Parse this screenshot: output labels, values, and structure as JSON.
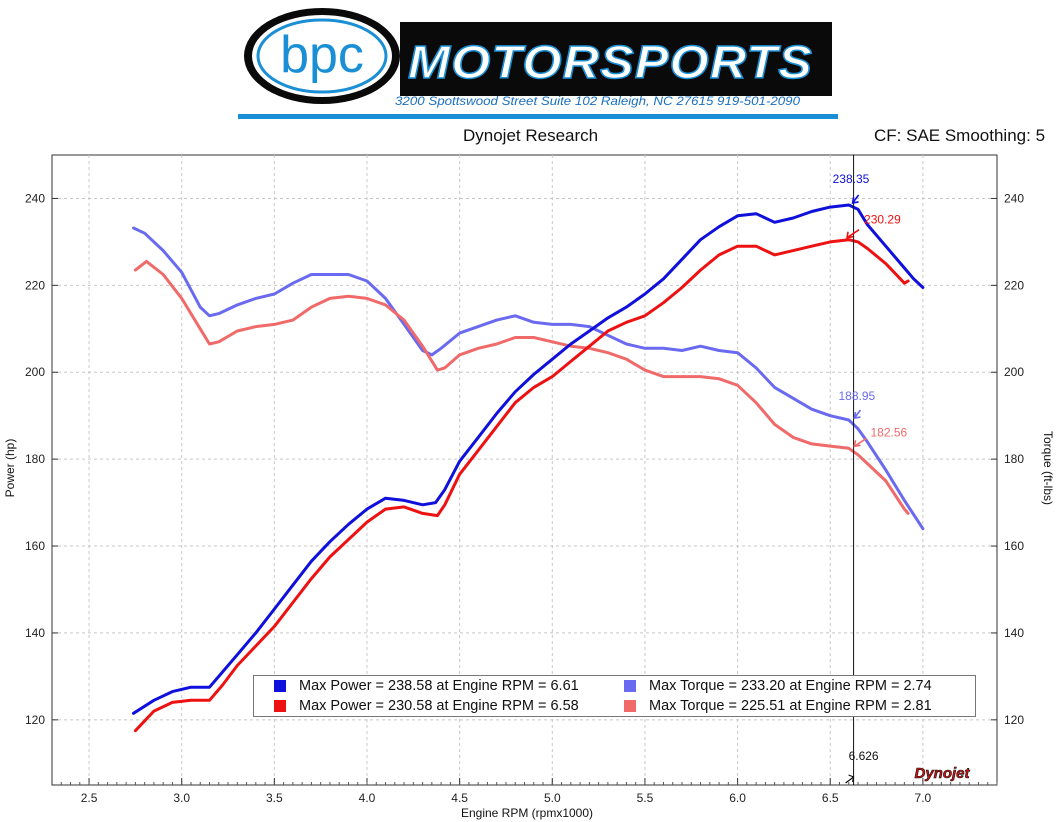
{
  "header": {
    "logo_text": "bpc",
    "brand": "MOTORSPORTS",
    "address": "3200 Spottswood Street Suite 102 Raleigh, NC 27615  919-501-2090"
  },
  "titles": {
    "center": "Dynojet Research",
    "right": "CF: SAE Smoothing: 5"
  },
  "cursor_label": "6.626",
  "watermark": "Dynojet",
  "colors": {
    "power_blue": "#1010dd",
    "power_red": "#ee1111",
    "torque_blue": "#6a6af0",
    "torque_red": "#f06a6a"
  },
  "chart_data": {
    "type": "line",
    "xlabel": "Engine RPM (rpmx1000)",
    "ylabel_left": "Power (hp)",
    "ylabel_right": "Torque (ft-lbs)",
    "xlim": [
      2.3,
      7.4
    ],
    "ylim": [
      105,
      250
    ],
    "x_ticks": [
      "2.5",
      "3.0",
      "3.5",
      "4.0",
      "4.5",
      "5.0",
      "5.5",
      "6.0",
      "6.5",
      "7.0"
    ],
    "y_ticks": [
      "120",
      "140",
      "160",
      "180",
      "200",
      "220",
      "240"
    ],
    "grid": true,
    "cursor_x": 6.626,
    "series": [
      {
        "name": "Max Power = 238.58 at Engine RPM = 6.61",
        "color": "#1010dd",
        "x": [
          2.74,
          2.85,
          2.95,
          3.05,
          3.15,
          3.22,
          3.3,
          3.4,
          3.5,
          3.6,
          3.7,
          3.8,
          3.9,
          4.0,
          4.1,
          4.2,
          4.3,
          4.37,
          4.42,
          4.5,
          4.6,
          4.7,
          4.8,
          4.9,
          5.0,
          5.1,
          5.2,
          5.3,
          5.4,
          5.5,
          5.6,
          5.7,
          5.8,
          5.9,
          6.0,
          6.1,
          6.2,
          6.3,
          6.4,
          6.5,
          6.6,
          6.65,
          6.7,
          6.8,
          6.9,
          6.95,
          7.0
        ],
        "y": [
          121.5,
          124.5,
          126.5,
          127.5,
          127.5,
          131,
          135,
          140,
          145.5,
          151,
          156.5,
          161,
          165,
          168.5,
          171,
          170.5,
          169.5,
          170,
          173,
          179.5,
          185,
          190.5,
          195.5,
          199.5,
          203,
          206.5,
          209.5,
          212.5,
          215,
          218,
          221.5,
          226,
          230.5,
          233.5,
          236,
          236.5,
          234.5,
          235.5,
          237,
          238,
          238.5,
          237.5,
          234,
          229,
          224,
          221.5,
          219.5
        ]
      },
      {
        "name": "Max Power = 230.58 at Engine RPM = 6.58",
        "color": "#ee1111",
        "x": [
          2.75,
          2.85,
          2.95,
          3.05,
          3.15,
          3.22,
          3.3,
          3.4,
          3.5,
          3.6,
          3.7,
          3.8,
          3.9,
          4.0,
          4.1,
          4.2,
          4.3,
          4.38,
          4.42,
          4.5,
          4.6,
          4.7,
          4.8,
          4.9,
          5.0,
          5.1,
          5.2,
          5.3,
          5.4,
          5.5,
          5.6,
          5.7,
          5.8,
          5.9,
          6.0,
          6.1,
          6.2,
          6.3,
          6.4,
          6.5,
          6.6,
          6.65,
          6.7,
          6.8,
          6.9,
          6.92
        ],
        "y": [
          117.5,
          122,
          124,
          124.5,
          124.5,
          128,
          132.5,
          137,
          141.5,
          147,
          152.5,
          157.5,
          161.5,
          165.5,
          168.5,
          169,
          167.5,
          167,
          169.5,
          176.5,
          182,
          187.5,
          193,
          196.5,
          199,
          202.5,
          206,
          209.5,
          211.5,
          213,
          216,
          219.5,
          223.5,
          227,
          229,
          229,
          227,
          228,
          229,
          230,
          230.5,
          230,
          228.5,
          225,
          220.5,
          221
        ]
      },
      {
        "name": "Max Torque = 233.20 at Engine RPM = 2.74",
        "color": "#6a6af0",
        "x": [
          2.74,
          2.8,
          2.9,
          3.0,
          3.1,
          3.15,
          3.2,
          3.3,
          3.4,
          3.5,
          3.6,
          3.7,
          3.8,
          3.9,
          4.0,
          4.1,
          4.2,
          4.3,
          4.35,
          4.4,
          4.5,
          4.6,
          4.7,
          4.8,
          4.9,
          5.0,
          5.1,
          5.2,
          5.3,
          5.4,
          5.5,
          5.6,
          5.7,
          5.8,
          5.9,
          6.0,
          6.1,
          6.2,
          6.3,
          6.4,
          6.5,
          6.6,
          6.65,
          6.7,
          6.8,
          6.9,
          7.0
        ],
        "y": [
          233.2,
          232,
          228,
          223,
          215,
          213,
          213.5,
          215.5,
          217,
          218,
          220.5,
          222.5,
          222.5,
          222.5,
          221,
          217,
          211,
          205,
          204,
          205.5,
          209,
          210.5,
          212,
          213,
          211.5,
          211,
          211,
          210.5,
          208.5,
          206.5,
          205.5,
          205.5,
          205,
          206,
          205,
          204.5,
          201,
          196.5,
          194,
          191.5,
          190,
          189,
          187,
          184,
          177.5,
          170.5,
          164
        ]
      },
      {
        "name": "Max Torque = 225.51 at Engine RPM = 2.81",
        "color": "#f06a6a",
        "x": [
          2.75,
          2.81,
          2.9,
          3.0,
          3.1,
          3.15,
          3.2,
          3.3,
          3.4,
          3.5,
          3.6,
          3.7,
          3.8,
          3.9,
          4.0,
          4.1,
          4.2,
          4.3,
          4.38,
          4.42,
          4.5,
          4.6,
          4.7,
          4.8,
          4.9,
          5.0,
          5.1,
          5.2,
          5.3,
          5.4,
          5.5,
          5.6,
          5.7,
          5.8,
          5.9,
          6.0,
          6.1,
          6.2,
          6.3,
          6.4,
          6.5,
          6.6,
          6.65,
          6.7,
          6.8,
          6.9,
          6.92
        ],
        "y": [
          223.5,
          225.5,
          222.5,
          217,
          210,
          206.5,
          207,
          209.5,
          210.5,
          211,
          212,
          215,
          217,
          217.5,
          217,
          215.5,
          212,
          206,
          200.5,
          201,
          204,
          205.5,
          206.5,
          208,
          208,
          207,
          206,
          205.5,
          204.5,
          203,
          200.5,
          199,
          199,
          199,
          198.5,
          197,
          193,
          188,
          185,
          183.5,
          183,
          182.5,
          181,
          179,
          175,
          168.5,
          167.5
        ]
      }
    ],
    "annotations": [
      {
        "text": "238.35",
        "x": 6.61,
        "y": 238.5,
        "color": "#1010dd"
      },
      {
        "text": "230.29",
        "x": 6.58,
        "y": 230.5,
        "color": "#ee1111"
      },
      {
        "text": "188.95",
        "x": 6.62,
        "y": 189,
        "color": "#6a6af0"
      },
      {
        "text": "182.56",
        "x": 6.62,
        "y": 182.5,
        "color": "#f06a6a"
      }
    ]
  }
}
